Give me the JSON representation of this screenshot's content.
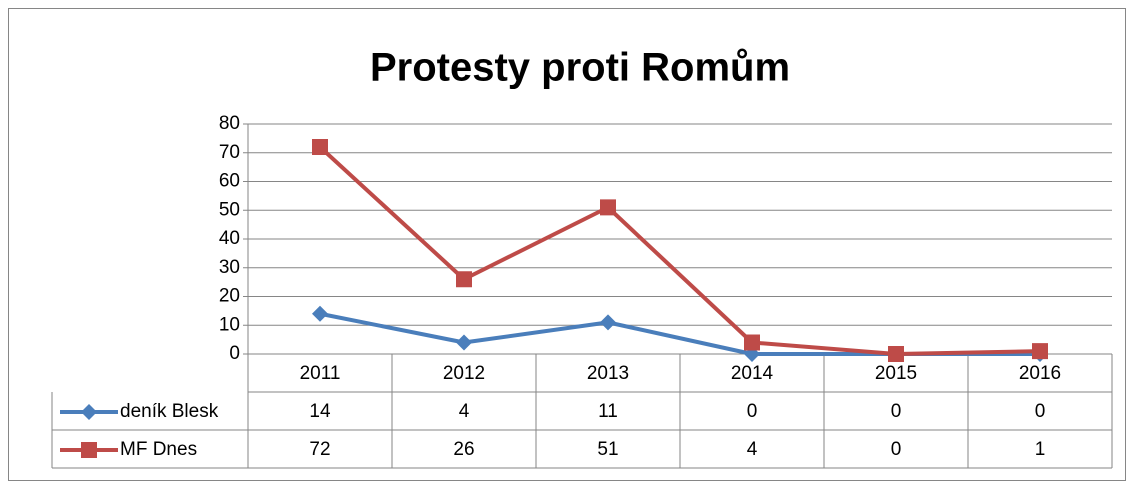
{
  "chart_data": {
    "type": "line",
    "title": "Protesty proti Romům",
    "categories": [
      "2011",
      "2012",
      "2013",
      "2014",
      "2015",
      "2016"
    ],
    "series": [
      {
        "name": "deník Blesk",
        "color": "#4a7ebb",
        "marker": "diamond",
        "values": [
          14,
          4,
          11,
          0,
          0,
          0
        ]
      },
      {
        "name": "MF Dnes",
        "color": "#be4b48",
        "marker": "square",
        "values": [
          72,
          26,
          51,
          4,
          0,
          1
        ]
      }
    ],
    "ylim": [
      0,
      80
    ],
    "yticks": [
      0,
      10,
      20,
      30,
      40,
      50,
      60,
      70,
      80
    ],
    "grid": true,
    "data_table": true
  }
}
